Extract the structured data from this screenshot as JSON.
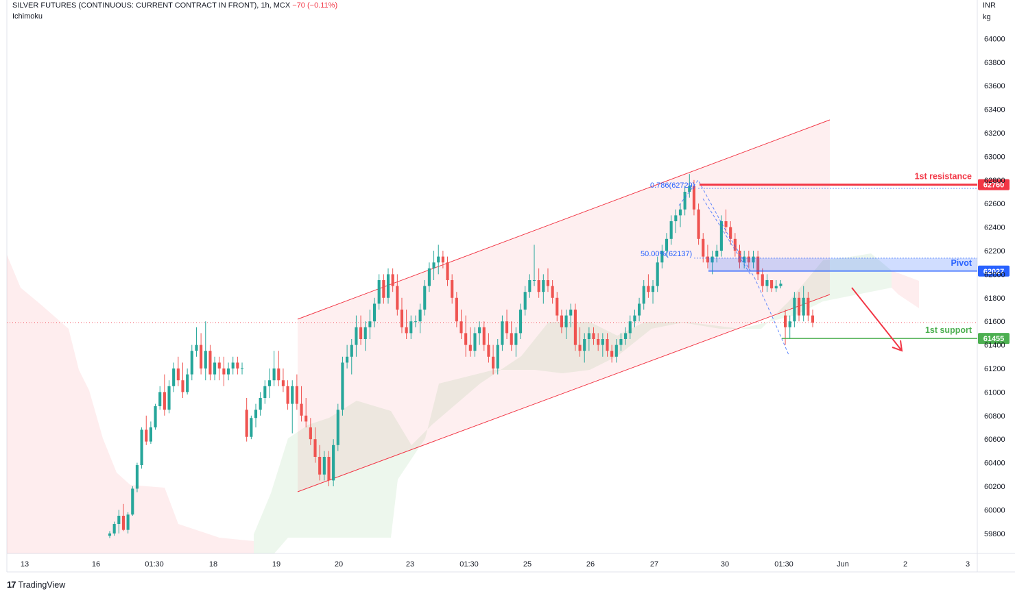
{
  "header": {
    "symbol": "SILVER FUTURES (CONTINUOUS: CURRENT CONTRACT IN FRONT), 1h, MCX",
    "change": "−70 (−0.11%)",
    "indicator": "Ichimoku"
  },
  "price_unit": {
    "line1": "INR",
    "line2": "kg"
  },
  "footer": {
    "brand": "TradingView"
  },
  "colors": {
    "up": "#26a69a",
    "down": "#ef5350",
    "channel": "#f23645",
    "resistance": "#f23645",
    "pivot": "#2962ff",
    "support": "#4caf50",
    "fib": "#2962ff"
  },
  "chart_data": {
    "type": "candlestick",
    "title": "SILVER FUTURES (CONTINUOUS: CURRENT CONTRACT IN FRONT), 1h, MCX",
    "ylim": [
      59750,
      64250
    ],
    "y_ticks": [
      59800,
      60000,
      60200,
      60400,
      60600,
      60800,
      61000,
      61200,
      61400,
      61600,
      61800,
      62000,
      62200,
      62400,
      62600,
      62800,
      63000,
      63200,
      63400,
      63600,
      63800,
      64000,
      64200
    ],
    "x_ticks": [
      "13",
      "16",
      "01:30",
      "18",
      "19",
      "20",
      "23",
      "01:30",
      "25",
      "26",
      "27",
      "30",
      "01:30",
      "Jun",
      "2",
      "3"
    ],
    "levels": [
      {
        "label": "1st resistance",
        "value": 62760,
        "tag": "62760"
      },
      {
        "label": "Pivot",
        "value": 62027,
        "tag": "62027"
      },
      {
        "label": "1st support",
        "value": 61455,
        "tag": "61455"
      }
    ],
    "fib_labels": [
      "0.786(62729)",
      "50.00%(62137)"
    ],
    "current_price": 61590,
    "candles": [
      [
        59780,
        59820,
        59760,
        59800
      ],
      [
        59800,
        59900,
        59780,
        59880
      ],
      [
        59880,
        60000,
        59800,
        59950
      ],
      [
        59950,
        60050,
        59820,
        59830
      ],
      [
        59830,
        59980,
        59800,
        59960
      ],
      [
        59960,
        60200,
        59950,
        60180
      ],
      [
        60180,
        60400,
        60150,
        60380
      ],
      [
        60380,
        60700,
        60350,
        60680
      ],
      [
        60680,
        60800,
        60550,
        60580
      ],
      [
        60580,
        60750,
        60560,
        60700
      ],
      [
        60700,
        60900,
        60680,
        60880
      ],
      [
        60880,
        61050,
        60850,
        61000
      ],
      [
        61000,
        61150,
        60800,
        60850
      ],
      [
        60850,
        61100,
        60820,
        61050
      ],
      [
        61050,
        61250,
        61000,
        61200
      ],
      [
        61200,
        61300,
        61050,
        61100
      ],
      [
        61100,
        61250,
        60950,
        61000
      ],
      [
        61000,
        61200,
        60980,
        61150
      ],
      [
        61150,
        61400,
        61100,
        61350
      ],
      [
        61350,
        61550,
        61300,
        61400
      ],
      [
        61400,
        61500,
        61150,
        61200
      ],
      [
        61200,
        61600,
        61100,
        61350
      ],
      [
        61350,
        61400,
        61100,
        61150
      ],
      [
        61150,
        61300,
        61100,
        61250
      ],
      [
        61250,
        61300,
        61100,
        61200
      ],
      [
        61200,
        61300,
        61050,
        61150
      ],
      [
        61150,
        61250,
        61100,
        61200
      ],
      [
        61200,
        61300,
        61150,
        61250
      ],
      [
        61250,
        61300,
        61150,
        61200
      ],
      [
        61200,
        61250,
        61150,
        61200
      ],
      [
        60850,
        60950,
        60580,
        60620
      ],
      [
        60620,
        60800,
        60600,
        60780
      ],
      [
        60780,
        60900,
        60700,
        60850
      ],
      [
        60850,
        61000,
        60800,
        60950
      ],
      [
        60950,
        61100,
        60900,
        61050
      ],
      [
        61050,
        61200,
        60950,
        61100
      ],
      [
        61100,
        61350,
        61050,
        61200
      ],
      [
        61200,
        61350,
        61050,
        61100
      ],
      [
        61100,
        61200,
        61000,
        61050
      ],
      [
        61050,
        61100,
        60850,
        60900
      ],
      [
        60900,
        61100,
        60650,
        61050
      ],
      [
        61050,
        61150,
        60850,
        60900
      ],
      [
        60900,
        61050,
        60750,
        60800
      ],
      [
        60800,
        60950,
        60700,
        60750
      ],
      [
        60700,
        60780,
        60550,
        60600
      ],
      [
        60600,
        60700,
        60400,
        60450
      ],
      [
        60450,
        60550,
        60250,
        60300
      ],
      [
        60300,
        60500,
        60250,
        60450
      ],
      [
        60450,
        60500,
        60200,
        60250
      ],
      [
        60250,
        60600,
        60200,
        60550
      ],
      [
        60550,
        60900,
        60500,
        60850
      ],
      [
        60850,
        61300,
        60800,
        61250
      ],
      [
        61250,
        61400,
        61200,
        61300
      ],
      [
        61300,
        61450,
        61150,
        61400
      ],
      [
        61400,
        61650,
        61300,
        61550
      ],
      [
        61550,
        61650,
        61400,
        61450
      ],
      [
        61450,
        61600,
        61350,
        61550
      ],
      [
        61550,
        61700,
        61450,
        61600
      ],
      [
        61600,
        61800,
        61550,
        61750
      ],
      [
        61750,
        62000,
        61700,
        61950
      ],
      [
        61950,
        62000,
        61750,
        61800
      ],
      [
        61800,
        62050,
        61750,
        62000
      ],
      [
        62000,
        62050,
        61850,
        61900
      ],
      [
        61900,
        62000,
        61650,
        61700
      ],
      [
        61700,
        61800,
        61500,
        61550
      ],
      [
        61550,
        61700,
        61450,
        61500
      ],
      [
        61500,
        61650,
        61450,
        61600
      ],
      [
        61600,
        61650,
        61550,
        61600
      ],
      [
        61600,
        61750,
        61500,
        61700
      ],
      [
        61700,
        61950,
        61650,
        61900
      ],
      [
        61900,
        62100,
        61850,
        62050
      ],
      [
        62050,
        62200,
        61950,
        62100
      ],
      [
        62100,
        62250,
        62000,
        62150
      ],
      [
        62150,
        62200,
        62050,
        62100
      ],
      [
        62100,
        62150,
        61900,
        61950
      ],
      [
        61950,
        62000,
        61750,
        61800
      ],
      [
        61800,
        61850,
        61550,
        61600
      ],
      [
        61600,
        61700,
        61450,
        61500
      ],
      [
        61500,
        61650,
        61300,
        61400
      ],
      [
        61400,
        61550,
        61300,
        61350
      ],
      [
        61350,
        61550,
        61300,
        61500
      ],
      [
        61500,
        61600,
        61400,
        61550
      ],
      [
        61550,
        61600,
        61350,
        61400
      ],
      [
        61400,
        61500,
        61250,
        61300
      ],
      [
        61300,
        61400,
        61150,
        61200
      ],
      [
        61200,
        61450,
        61150,
        61400
      ],
      [
        61400,
        61650,
        61350,
        61600
      ],
      [
        61600,
        61700,
        61450,
        61500
      ],
      [
        61500,
        61600,
        61350,
        61400
      ],
      [
        61400,
        61550,
        61300,
        61500
      ],
      [
        61500,
        61750,
        61450,
        61700
      ],
      [
        61700,
        61900,
        61650,
        61850
      ],
      [
        61850,
        62000,
        61800,
        61950
      ],
      [
        61950,
        62250,
        61900,
        61950
      ],
      [
        61950,
        62050,
        61800,
        61850
      ],
      [
        61850,
        62000,
        61750,
        61950
      ],
      [
        61950,
        62050,
        61850,
        61900
      ],
      [
        61900,
        61950,
        61750,
        61800
      ],
      [
        61800,
        61850,
        61600,
        61650
      ],
      [
        61650,
        61700,
        61500,
        61550
      ],
      [
        61550,
        61700,
        61450,
        61650
      ],
      [
        61650,
        61750,
        61550,
        61700
      ],
      [
        61700,
        61750,
        61350,
        61400
      ],
      [
        61400,
        61550,
        61300,
        61350
      ],
      [
        61350,
        61500,
        61250,
        61450
      ],
      [
        61450,
        61550,
        61350,
        61500
      ],
      [
        61500,
        61550,
        61400,
        61450
      ],
      [
        61450,
        61500,
        61350,
        61400
      ],
      [
        61400,
        61500,
        61300,
        61450
      ],
      [
        61450,
        61500,
        61300,
        61350
      ],
      [
        61350,
        61400,
        61250,
        61300
      ],
      [
        61300,
        61450,
        61250,
        61400
      ],
      [
        61400,
        61500,
        61350,
        61450
      ],
      [
        61450,
        61550,
        61400,
        61500
      ],
      [
        61500,
        61650,
        61450,
        61600
      ],
      [
        61600,
        61700,
        61550,
        61650
      ],
      [
        61650,
        61800,
        61600,
        61750
      ],
      [
        61750,
        61950,
        61700,
        61900
      ],
      [
        61900,
        62000,
        61800,
        61850
      ],
      [
        61850,
        61950,
        61750,
        61900
      ],
      [
        61900,
        62150,
        61850,
        62100
      ],
      [
        62100,
        62250,
        62050,
        62200
      ],
      [
        62200,
        62350,
        62150,
        62300
      ],
      [
        62300,
        62500,
        62250,
        62450
      ],
      [
        62450,
        62550,
        62350,
        62500
      ],
      [
        62500,
        62600,
        62400,
        62550
      ],
      [
        62550,
        62750,
        62500,
        62700
      ],
      [
        62700,
        62850,
        62650,
        62750
      ],
      [
        62750,
        62800,
        62500,
        62550
      ],
      [
        62550,
        62600,
        62250,
        62300
      ],
      [
        62300,
        62350,
        62100,
        62150
      ],
      [
        62150,
        62250,
        62050,
        62100
      ],
      [
        62100,
        62200,
        62000,
        62150
      ],
      [
        62150,
        62250,
        62100,
        62200
      ],
      [
        62200,
        62500,
        62150,
        62450
      ],
      [
        62450,
        62550,
        62350,
        62400
      ],
      [
        62400,
        62450,
        62250,
        62300
      ],
      [
        62300,
        62350,
        62150,
        62200
      ],
      [
        62200,
        62250,
        62050,
        62100
      ],
      [
        62100,
        62200,
        62050,
        62150
      ],
      [
        62150,
        62200,
        62050,
        62100
      ],
      [
        62100,
        62200,
        62050,
        62150
      ],
      [
        62150,
        62200,
        61950,
        62000
      ],
      [
        62000,
        62050,
        61850,
        61900
      ],
      [
        61900,
        62000,
        61850,
        61950
      ],
      [
        61950,
        61950,
        61850,
        61880
      ],
      [
        61880,
        61950,
        61850,
        61900
      ],
      [
        61900,
        61950,
        61880,
        61920
      ],
      [
        61650,
        61700,
        61400,
        61550
      ],
      [
        61550,
        61650,
        61450,
        61600
      ],
      [
        61600,
        61850,
        61550,
        61800
      ],
      [
        61800,
        61850,
        61600,
        61650
      ],
      [
        61650,
        61900,
        61600,
        61800
      ],
      [
        61800,
        61850,
        61600,
        61650
      ],
      [
        61650,
        61700,
        61550,
        61590
      ]
    ]
  }
}
